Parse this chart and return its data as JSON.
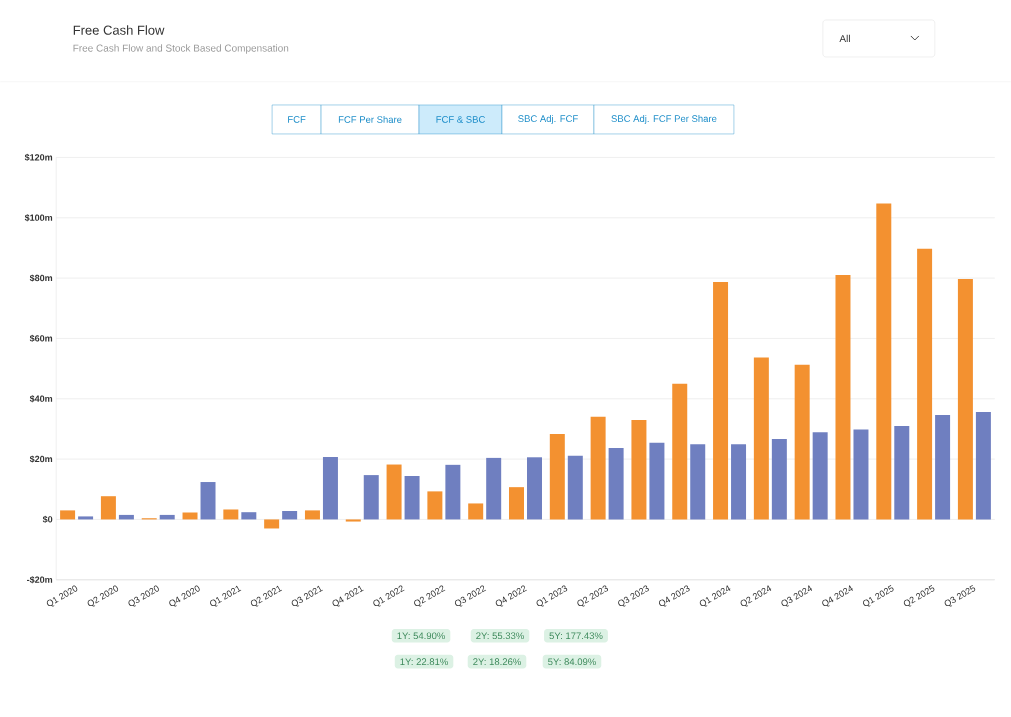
{
  "chart_data": {
    "type": "bar",
    "title": "Free Cash Flow",
    "subtitle": "Free Cash Flow and Stock Based Compensation",
    "categories": [
      "Q1 2020",
      "Q2 2020",
      "Q3 2020",
      "Q4 2020",
      "Q1 2021",
      "Q2 2021",
      "Q3 2021",
      "Q4 2021",
      "Q1 2022",
      "Q2 2022",
      "Q3 2022",
      "Q4 2022",
      "Q1 2023",
      "Q2 2023",
      "Q3 2023",
      "Q4 2023",
      "Q1 2024",
      "Q2 2024",
      "Q3 2024",
      "Q4 2024",
      "Q1 2025",
      "Q2 2025",
      "Q3 2025"
    ],
    "series": [
      {
        "color": "#f39130",
        "values": [
          3,
          7.7,
          0.4,
          2.3,
          3.3,
          -3,
          3,
          -0.7,
          18.2,
          9.3,
          5.3,
          10.7,
          28.3,
          34,
          33,
          45,
          78.7,
          53.7,
          51.3,
          81,
          104.7,
          89.7,
          79.7
        ]
      },
      {
        "color": "#6f7fc0",
        "values": [
          1,
          1.5,
          1.5,
          12.4,
          2.4,
          2.8,
          20.7,
          14.7,
          14.4,
          18.1,
          20.4,
          20.6,
          21.1,
          23.7,
          25.4,
          24.9,
          24.9,
          26.7,
          28.9,
          29.8,
          31,
          34.6,
          35.6
        ]
      }
    ],
    "ylim": [
      -20,
      120
    ],
    "yticks": [
      {
        "value": -20,
        "label": "-$20m"
      },
      {
        "value": 0,
        "label": "$0"
      },
      {
        "value": 20,
        "label": "$20m"
      },
      {
        "value": 40,
        "label": "$40m"
      },
      {
        "value": 60,
        "label": "$60m"
      },
      {
        "value": 80,
        "label": "$80m"
      },
      {
        "value": 100,
        "label": "$100m"
      },
      {
        "value": 120,
        "label": "$120m"
      }
    ],
    "grid": "y",
    "annotations": [
      "FCF",
      "FCF Per Share",
      "FCF & SBC",
      "SBC Adj. FCF",
      "SBC Adj. FCF Per Share",
      "All",
      "1Y: 54.90%",
      "2Y: 55.33%",
      "5Y: 177.43%",
      "1Y: 22.81%",
      "2Y: 18.26%",
      "5Y: 84.09%"
    ]
  }
}
